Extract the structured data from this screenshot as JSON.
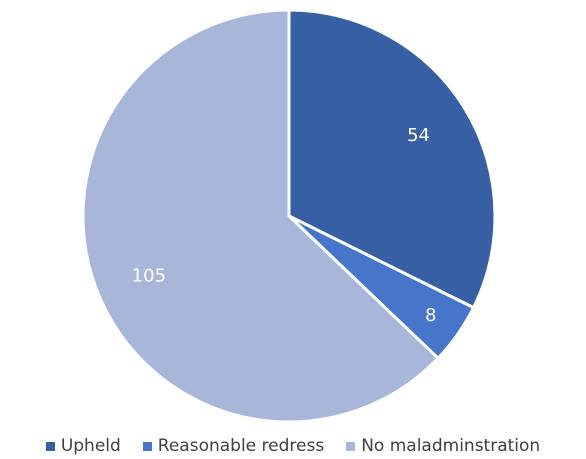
{
  "chart_data": {
    "type": "pie",
    "categories": [
      "Upheld",
      "Reasonable redress",
      "No maladminstration"
    ],
    "values": [
      54,
      8,
      105
    ],
    "colors": [
      "#365fa4",
      "#4675ca",
      "#a8b6da"
    ],
    "data_labels": [
      "54",
      "8",
      "105"
    ],
    "legend": {
      "placement": "bottom",
      "entries": [
        "Upheld",
        "Reasonable redress",
        "No maladminstration"
      ]
    },
    "title": "",
    "start_angle": "12 o'clock",
    "direction": "clockwise"
  }
}
